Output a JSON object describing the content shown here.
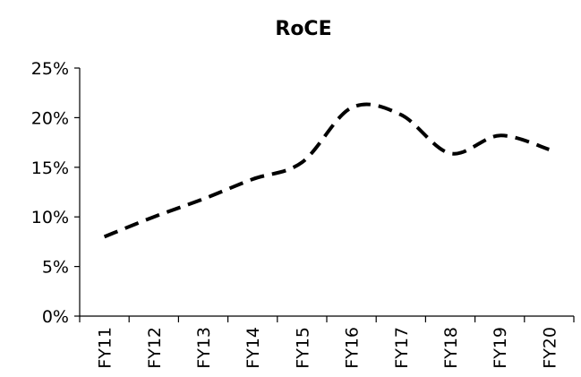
{
  "chart_data": {
    "type": "line",
    "title": "RoCE",
    "xlabel": "",
    "ylabel": "",
    "categories": [
      "FY11",
      "FY12",
      "FY13",
      "FY14",
      "FY15",
      "FY16",
      "FY17",
      "FY18",
      "FY19",
      "FY20"
    ],
    "series": [
      {
        "values": [
          8.0,
          10.0,
          11.8,
          13.8,
          15.5,
          21.0,
          20.3,
          16.4,
          18.2,
          16.8
        ],
        "color": "#000000",
        "style": "dashed",
        "smooth": true
      }
    ],
    "ylim": [
      0,
      25
    ],
    "yticks": [
      0,
      5,
      10,
      15,
      20,
      25
    ],
    "ytick_labels": [
      "0%",
      "5%",
      "10%",
      "15%",
      "20%",
      "25%"
    ],
    "grid": false,
    "legend": "none"
  }
}
